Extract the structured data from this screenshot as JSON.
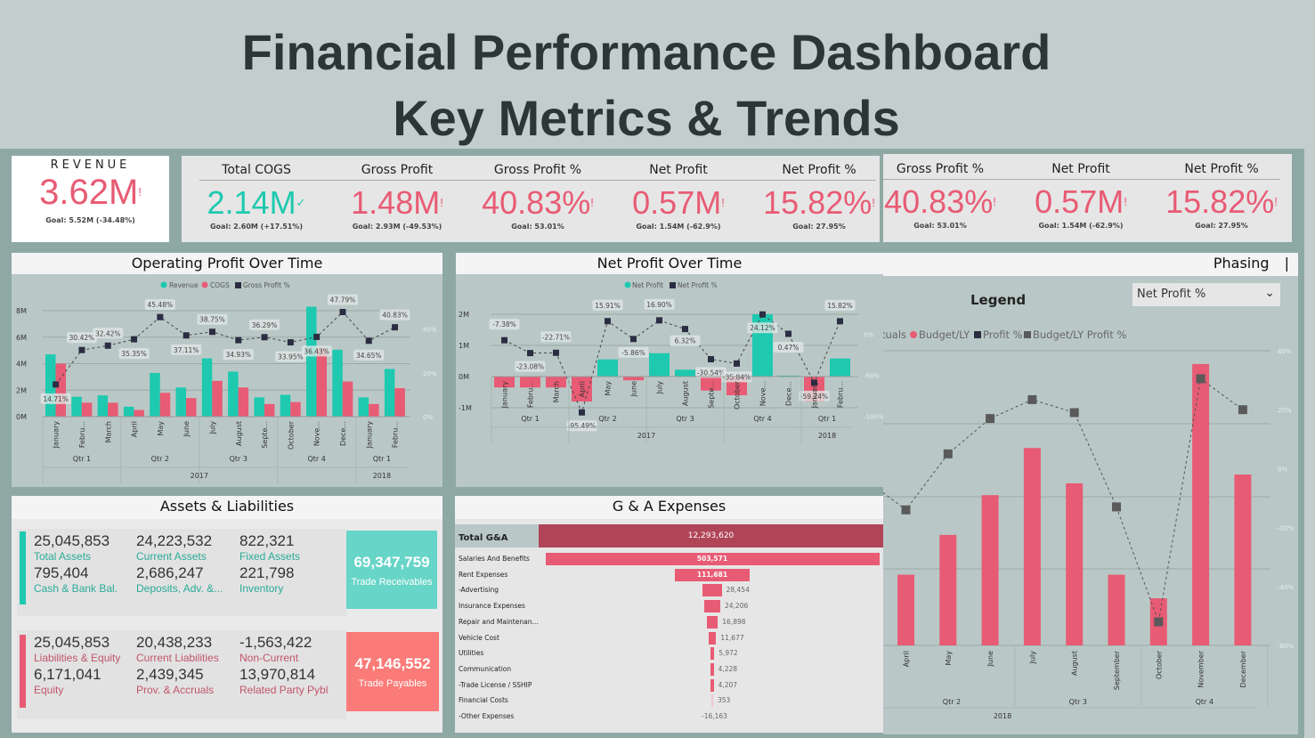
{
  "title": {
    "line1": "Financial Performance Dashboard",
    "line2": "Key Metrics & Trends"
  },
  "colors": {
    "teal": "#1ec9b0",
    "pink": "#e85b74",
    "dark": "#2b2d42",
    "bg": "#b9c8c6",
    "ga_total": "#b04558"
  },
  "revenue": {
    "label": "REVENUE",
    "value": "3.62M",
    "flag": "!",
    "goal": "Goal: 5.52M (-34.48%)"
  },
  "kpis": [
    {
      "title": "Total COGS",
      "value": "2.14M",
      "flag": "✓",
      "goal": "Goal: 2.60M (+17.51%)",
      "status": "good"
    },
    {
      "title": "Gross Profit",
      "value": "1.48M",
      "flag": "!",
      "goal": "Goal: 2.93M (-49.53%)",
      "status": "bad"
    },
    {
      "title": "Gross Profit %",
      "value": "40.83%",
      "flag": "!",
      "goal": "Goal: 53.01%",
      "status": "bad"
    },
    {
      "title": "Net Profit",
      "value": "0.57M",
      "flag": "!",
      "goal": "Goal: 1.54M (-62.9%)",
      "status": "bad"
    },
    {
      "title": "Net Profit %",
      "value": "15.82%",
      "flag": "!",
      "goal": "Goal: 27.95%",
      "status": "bad"
    }
  ],
  "kpis2": [
    {
      "title": "Gross Profit %",
      "value": "40.83%",
      "flag": "!",
      "goal": "Goal: 53.01%"
    },
    {
      "title": "Net Profit",
      "value": "0.57M",
      "flag": "!",
      "goal": "Goal: 1.54M (-62.9%)"
    },
    {
      "title": "Net Profit %",
      "value": "15.82%",
      "flag": "!",
      "goal": "Goal: 27.95%"
    }
  ],
  "op_panel": {
    "title": "Operating Profit Over Time"
  },
  "np_panel": {
    "title": "Net Profit Over Time"
  },
  "phasing_panel": {
    "title": "Phasing",
    "cursor": "|",
    "legend_title": "Legend",
    "dropdown_value": "Net Profit %"
  },
  "assets_panel": {
    "title": "Assets & Liabilities",
    "assets": [
      {
        "value": "25,045,853",
        "label": "Total Assets"
      },
      {
        "value": "24,223,532",
        "label": "Current Assets"
      },
      {
        "value": "822,321",
        "label": "Fixed Assets"
      },
      {
        "value": "795,404",
        "label": "Cash & Bank Bal."
      },
      {
        "value": "2,686,247",
        "label": "Deposits, Adv. &..."
      },
      {
        "value": "221,798",
        "label": "Inventory"
      }
    ],
    "liabilities": [
      {
        "value": "25,045,853",
        "label": "Liabilities & Equity"
      },
      {
        "value": "20,438,233",
        "label": "Current Liabilities"
      },
      {
        "value": "-1,563,422",
        "label": "Non-Current"
      },
      {
        "value": "6,171,041",
        "label": "Equity"
      },
      {
        "value": "2,439,345",
        "label": "Prov. & Accruals"
      },
      {
        "value": "13,970,814",
        "label": "Related Party Pybl"
      }
    ],
    "receivables": {
      "value": "69,347,759",
      "label": "Trade Receivables"
    },
    "payables": {
      "value": "47,146,552",
      "label": "Trade Payables"
    }
  },
  "ga_panel": {
    "title": "G & A Expenses"
  },
  "chart_data": [
    {
      "type": "bar",
      "title": "Operating Profit Over Time",
      "categories": [
        "January",
        "Febru...",
        "March",
        "April",
        "May",
        "June",
        "July",
        "August",
        "Septe...",
        "October",
        "Nove...",
        "Dece...",
        "January",
        "Febru..."
      ],
      "quarters": [
        {
          "label": "Qtr 1",
          "span": 3
        },
        {
          "label": "Qtr 2",
          "span": 3
        },
        {
          "label": "Qtr 3",
          "span": 3
        },
        {
          "label": "Qtr 4",
          "span": 3
        },
        {
          "label": "Qtr 1",
          "span": 2
        }
      ],
      "years": [
        {
          "label": "2017",
          "span": 12
        },
        {
          "label": "2018",
          "span": 2
        }
      ],
      "series": [
        {
          "name": "Revenue",
          "type": "bar",
          "values": [
            4.7,
            1.5,
            1.6,
            0.75,
            3.3,
            2.2,
            4.4,
            3.4,
            1.45,
            1.65,
            8.3,
            5.05,
            1.45,
            3.6
          ]
        },
        {
          "name": "COGS",
          "type": "bar",
          "values": [
            4.0,
            1.05,
            1.05,
            0.5,
            1.8,
            1.4,
            2.7,
            2.2,
            0.95,
            1.1,
            5.2,
            2.65,
            0.95,
            2.15
          ]
        },
        {
          "name": "Gross Profit %",
          "type": "line",
          "axis": "right",
          "values": [
            14.71,
            30.42,
            32.42,
            35.35,
            45.48,
            37.11,
            38.75,
            34.93,
            36.29,
            33.95,
            36.43,
            47.79,
            34.65,
            40.83
          ],
          "labels": [
            "14.71%",
            "30.42%",
            "32.42%",
            "35.35%",
            "45.48%",
            "37.11%",
            "38.75%",
            "34.93%",
            "36.29%",
            "33.95%",
            "36.43%",
            "47.79%",
            "34.65%",
            "40.83%"
          ]
        }
      ],
      "yticks": [
        "0M",
        "2M",
        "4M",
        "6M",
        "8M"
      ],
      "ylim": [
        0,
        8
      ],
      "y2ticks": [
        "0%",
        "20%",
        "40%"
      ],
      "y2lim": [
        0,
        48.4
      ],
      "legend": "top-center"
    },
    {
      "type": "bar",
      "title": "Net Profit Over Time",
      "categories": [
        "January",
        "Febru...",
        "March",
        "April",
        "May",
        "June",
        "July",
        "August",
        "Septe...",
        "October",
        "Nove...",
        "Dece...",
        "January",
        "Febru..."
      ],
      "quarters": [
        {
          "label": "Qtr 1",
          "span": 3
        },
        {
          "label": "Qtr 2",
          "span": 3
        },
        {
          "label": "Qtr 3",
          "span": 3
        },
        {
          "label": "Qtr 4",
          "span": 3
        },
        {
          "label": "Qtr 1",
          "span": 2
        }
      ],
      "years": [
        {
          "label": "2017",
          "span": 12
        },
        {
          "label": "2018",
          "span": 2
        }
      ],
      "series": [
        {
          "name": "Net Profit",
          "type": "bar",
          "values": [
            -0.35,
            -0.35,
            -0.35,
            -0.8,
            0.55,
            -0.12,
            0.75,
            0.22,
            -0.45,
            -0.6,
            2.0,
            0.03,
            -0.8,
            0.58
          ]
        },
        {
          "name": "Net Profit %",
          "type": "line",
          "axis": "right",
          "values": [
            -7.38,
            -23.08,
            -22.71,
            -95.49,
            15.91,
            -5.86,
            16.9,
            6.32,
            -30.54,
            -35.84,
            24.12,
            0.47,
            -59.24,
            15.82
          ],
          "labels": [
            "-7.38%",
            "-23.08%",
            "-22.71%",
            "-95.49%",
            "15.91%",
            "-5.86%",
            "16.90%",
            "6.32%",
            "-30.54%",
            "-35.84%",
            "24.12%",
            "0.47%",
            "-59.24%",
            "15.82%"
          ]
        }
      ],
      "yticks": [
        "-1M",
        "0M",
        "1M",
        "2M"
      ],
      "ylim": [
        -1.25,
        2.1
      ],
      "y2ticks": [
        "0%",
        "-50%",
        "-100%"
      ],
      "legend": "top-center"
    },
    {
      "type": "bar",
      "title": "Phasing",
      "categories": [
        "April",
        "May",
        "June",
        "July",
        "August",
        "September",
        "October",
        "November",
        "December"
      ],
      "quarters": [
        {
          "label": "Qtr 2",
          "span": 3
        },
        {
          "label": "Qtr 3",
          "span": 3
        },
        {
          "label": "Qtr 4",
          "span": 3
        }
      ],
      "years": [
        {
          "label": "2018",
          "span": 9
        }
      ],
      "legend_items": [
        {
          "name": "tuals",
          "marker": "none"
        },
        {
          "name": "Budget/LY",
          "marker": "circle"
        },
        {
          "name": "Profit %",
          "marker": "square-dark"
        },
        {
          "name": "Budget/LY Profit %",
          "marker": "square-grey"
        }
      ],
      "series": [
        {
          "name": "Budget/LY",
          "type": "bar",
          "values": [
            -36,
            -22.5,
            -9,
            7,
            -5,
            -36,
            -44,
            35.5,
            -2
          ]
        },
        {
          "name": "Budget/LY Profit %",
          "type": "line",
          "axis": "right",
          "values": [
            -14,
            5,
            17,
            23.4,
            19,
            -13,
            -52,
            30.5,
            20
          ]
        }
      ],
      "y2ticks": [
        "40%",
        "20%",
        "0%",
        "-20%",
        "-40%",
        "-60%"
      ],
      "y2lim": [
        -60,
        40
      ]
    },
    {
      "type": "funnel",
      "title": "G & A Expenses",
      "total": {
        "label": "Total G&A",
        "value": "12,293,620"
      },
      "categories": [
        "Salaries And Benefits",
        "Rent Expenses",
        "-Advertising",
        "Insurance Expenses",
        "Repair and Maintenan...",
        "Vehicle Cost",
        "Utilities",
        "Communication",
        "-Trade License / SSHIP",
        "Financial Costs",
        "-Other Expenses"
      ],
      "values": [
        503571,
        111681,
        28454,
        24206,
        16898,
        11677,
        5972,
        4228,
        4207,
        353,
        -16163
      ],
      "labels": [
        "503,571",
        "111,681",
        "28,454",
        "24,206",
        "16,898",
        "11,677",
        "5,972",
        "4,228",
        "4,207",
        "353",
        "-16,163"
      ]
    }
  ]
}
